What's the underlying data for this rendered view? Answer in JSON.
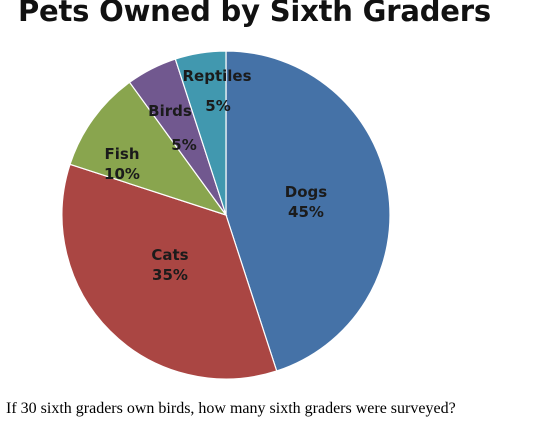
{
  "chart_data": {
    "type": "pie",
    "title": "Pets Owned by Sixth Graders",
    "slices": [
      {
        "name": "Dogs",
        "value": 45,
        "label": "45%",
        "color": "#4572A7"
      },
      {
        "name": "Cats",
        "value": 35,
        "label": "35%",
        "color": "#AA4643"
      },
      {
        "name": "Fish",
        "value": 10,
        "label": "10%",
        "color": "#89A54E"
      },
      {
        "name": "Birds",
        "value": 5,
        "label": "5%",
        "color": "#71588F"
      },
      {
        "name": "Reptiles",
        "value": 5,
        "label": "5%",
        "color": "#4198AF"
      }
    ],
    "legend": "none"
  },
  "question": "If 30 sixth graders own birds, how many sixth graders were surveyed?"
}
